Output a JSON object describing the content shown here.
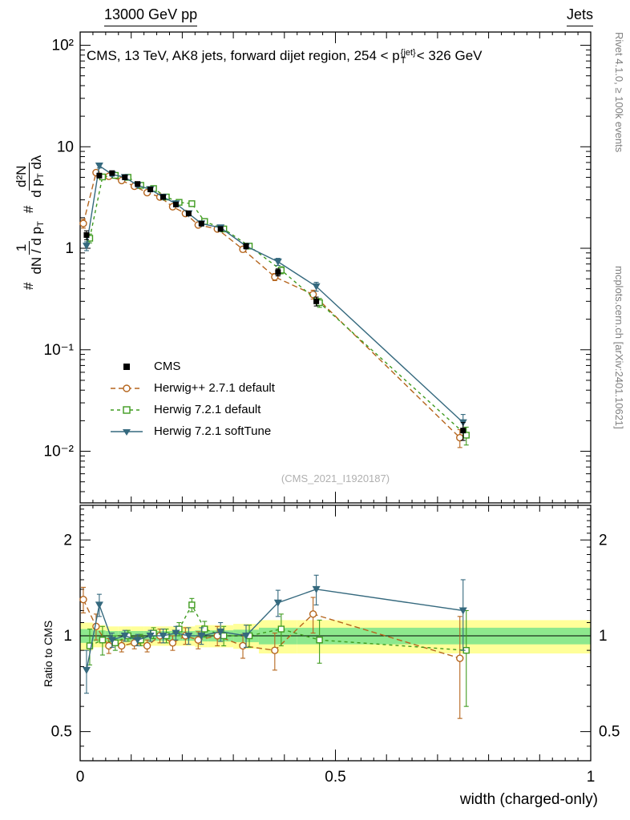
{
  "header": {
    "left": "13000 GeV pp",
    "right": "Jets"
  },
  "title": {
    "pre": "CMS, 13 TeV, AK8 jets, forward dijet region, 254 < p",
    "sup": "{jet}",
    "sub": "T",
    "post": "< 326 GeV"
  },
  "ylabel_main": {
    "h1": "#",
    "f1n": "1",
    "f1d_pre": "dN / d p",
    "f1d_sub": "T",
    "h2": "#",
    "f2n": "d²N",
    "f2d_pre": "d p",
    "f2d_sub": "T",
    "f2d_post": " dλ"
  },
  "ylabel_ratio": "Ratio to CMS",
  "xlabel": "width (charged-only)",
  "watermark": "(CMS_2021_I1920187)",
  "side_notes": {
    "top": "Rivet 4.1.0, ≥ 100k events",
    "bottom": "mcplots.cern.ch [arXiv:2401.10621]"
  },
  "legend": [
    {
      "label": "CMS",
      "marker": "filled-square",
      "line": "none"
    },
    {
      "label": "Herwig++ 2.7.1 default",
      "marker": "open-circle",
      "line": "dashed"
    },
    {
      "label": "Herwig 7.2.1 default",
      "marker": "open-square",
      "line": "dashed"
    },
    {
      "label": "Herwig 7.2.1 softTune",
      "marker": "filled-triangle-down",
      "line": "solid"
    }
  ],
  "colors": {
    "cms": "#000000",
    "herwigpp": "#b5651d",
    "herwig7": "#3f9b1f",
    "softtune": "#35697e",
    "band_yellow": "#ffff99",
    "band_green": "#8de88d",
    "text_muted": "#808080",
    "watermark": "#b0b0b0"
  },
  "axes": {
    "main_yticks": [
      {
        "v": 100,
        "label": "10²"
      },
      {
        "v": 10,
        "label": "10"
      },
      {
        "v": 1,
        "label": "1"
      },
      {
        "v": 0.1,
        "label": "10⁻¹"
      },
      {
        "v": 0.01,
        "label": "10⁻²"
      }
    ],
    "ratio_yticks": [
      {
        "v": 2,
        "label": "2"
      },
      {
        "v": 1,
        "label": "1"
      },
      {
        "v": 0.5,
        "label": "0.5"
      }
    ],
    "xticks": [
      {
        "v": 0,
        "label": "0"
      },
      {
        "v": 0.5,
        "label": "0.5"
      },
      {
        "v": 1,
        "label": "1"
      }
    ]
  },
  "chart_data": {
    "type": "line",
    "title": "CMS, 13 TeV, AK8 jets, forward dijet region, 254 < pT^{jet} < 326 GeV",
    "xlabel": "width (charged-only)",
    "ylabel": "# 1/(dN/dpT) # d²N/(dpT dλ)",
    "ylabel_ratio": "Ratio to CMS",
    "xlim": [
      0,
      1
    ],
    "ylim_main": [
      0.0031,
      135
    ],
    "ylim_ratio": [
      0.405,
      2.57
    ],
    "x_edges": [
      0,
      0.025,
      0.05,
      0.075,
      0.1,
      0.125,
      0.15,
      0.175,
      0.2,
      0.225,
      0.25,
      0.3,
      0.35,
      0.425,
      0.5,
      1.0
    ],
    "x": [
      0.0125,
      0.0375,
      0.0625,
      0.0875,
      0.1125,
      0.1375,
      0.1625,
      0.1875,
      0.2125,
      0.2375,
      0.275,
      0.325,
      0.3875,
      0.4625,
      0.75
    ],
    "cms": {
      "values": [
        1.35,
        5.2,
        5.5,
        5.0,
        4.3,
        3.8,
        3.2,
        2.7,
        2.2,
        1.75,
        1.55,
        1.05,
        0.58,
        0.3,
        0.016
      ],
      "err_rel": [
        0.1,
        0.05,
        0.04,
        0.04,
        0.04,
        0.04,
        0.04,
        0.04,
        0.05,
        0.05,
        0.05,
        0.06,
        0.08,
        0.1,
        0.2
      ]
    },
    "series": [
      {
        "name": "Herwig++ 2.7.1 default",
        "key": "herwigpp",
        "style": "dashed",
        "marker": "open-circle",
        "ratio": [
          1.3,
          1.07,
          0.93,
          0.93,
          0.95,
          0.93,
          1.0,
          0.95,
          1.0,
          0.97,
          1.0,
          0.93,
          0.9,
          1.17,
          0.85
        ]
      },
      {
        "name": "Herwig 7.2.1 default",
        "key": "herwig7",
        "style": "dashed",
        "marker": "open-square",
        "ratio": [
          0.93,
          0.97,
          0.95,
          1.0,
          0.97,
          1.02,
          1.0,
          1.05,
          1.25,
          1.05,
          1.0,
          1.0,
          1.05,
          0.97,
          0.9
        ]
      },
      {
        "name": "Herwig 7.2.1 softTune",
        "key": "softtune",
        "style": "solid",
        "marker": "filled-triangle-down",
        "ratio": [
          0.78,
          1.25,
          0.97,
          1.0,
          0.97,
          1.0,
          1.0,
          1.02,
          1.0,
          1.0,
          1.03,
          1.0,
          1.27,
          1.4,
          1.2
        ]
      }
    ],
    "ratio_err": [
      0.12,
      0.1,
      0.05,
      0.04,
      0.04,
      0.04,
      0.05,
      0.05,
      0.06,
      0.06,
      0.07,
      0.08,
      0.12,
      0.15,
      0.3
    ],
    "bands": {
      "yellow_halfwidth": [
        0.1,
        0.08,
        0.07,
        0.07,
        0.07,
        0.07,
        0.07,
        0.07,
        0.07,
        0.08,
        0.08,
        0.09,
        0.12,
        0.12,
        0.12
      ],
      "green_halfwidth": [
        0.05,
        0.04,
        0.035,
        0.035,
        0.035,
        0.035,
        0.035,
        0.035,
        0.035,
        0.04,
        0.04,
        0.045,
        0.06,
        0.06,
        0.06
      ]
    }
  }
}
